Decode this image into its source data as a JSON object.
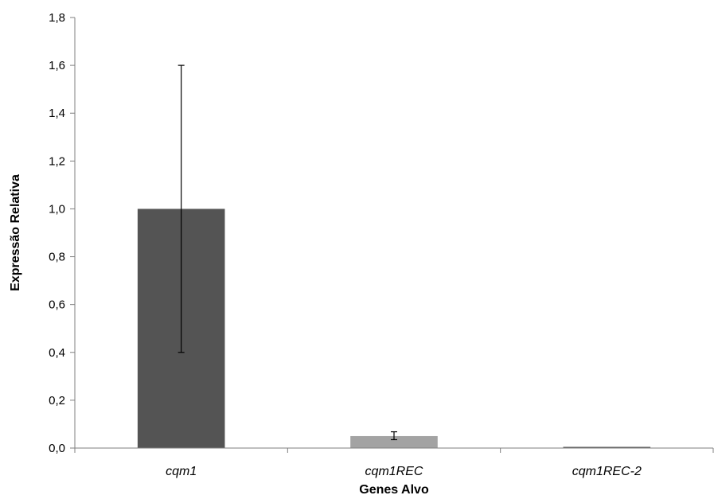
{
  "chart_data": {
    "type": "bar",
    "categories": [
      "cqm1",
      "cqm1REC",
      "cqm1REC-2"
    ],
    "values": [
      1.0,
      0.05,
      0.004
    ],
    "error_low": [
      0.4,
      0.035,
      0.004
    ],
    "error_high": [
      1.6,
      0.068,
      0.004
    ],
    "colors": [
      "#545454",
      "#a3a3a3",
      "#545454"
    ],
    "xlabel": "Genes Alvo",
    "ylabel": "Expressão Relativa",
    "ylim": [
      0,
      1.8
    ],
    "yticks": [
      0,
      0.2,
      0.4,
      0.6,
      0.8,
      1.0,
      1.2,
      1.4,
      1.6,
      1.8
    ],
    "ytick_labels": [
      "0,0",
      "0,2",
      "0,4",
      "0,6",
      "0,8",
      "1,0",
      "1,2",
      "1,4",
      "1,6",
      "1,8"
    ],
    "grid": false,
    "legend": "none"
  }
}
